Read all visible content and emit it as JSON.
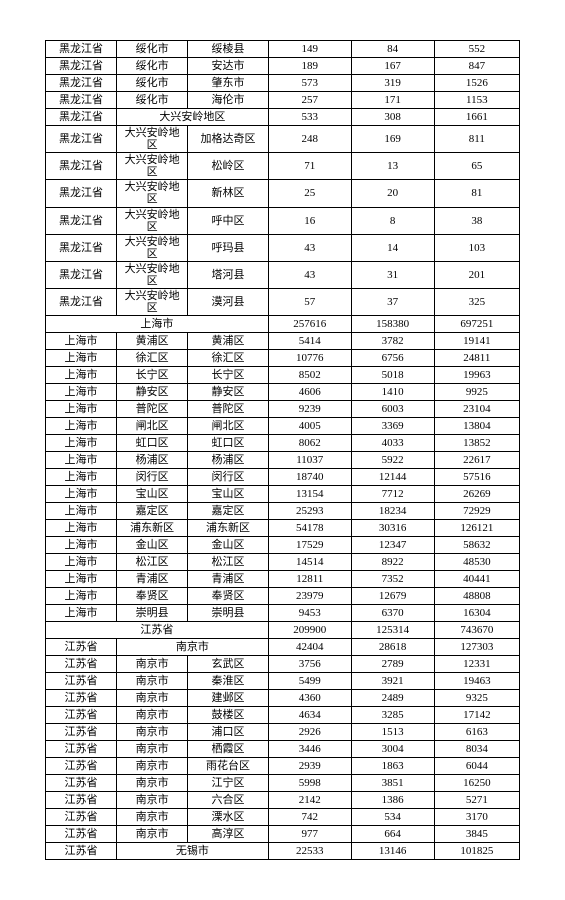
{
  "rows": [
    {
      "type": "normal",
      "c1": "黑龙江省",
      "c2": "绥化市",
      "c3": "绥棱县",
      "c4": "149",
      "c5": "84",
      "c6": "552"
    },
    {
      "type": "normal",
      "c1": "黑龙江省",
      "c2": "绥化市",
      "c3": "安达市",
      "c4": "189",
      "c5": "167",
      "c6": "847"
    },
    {
      "type": "normal",
      "c1": "黑龙江省",
      "c2": "绥化市",
      "c3": "肇东市",
      "c4": "573",
      "c5": "319",
      "c6": "1526"
    },
    {
      "type": "normal",
      "c1": "黑龙江省",
      "c2": "绥化市",
      "c3": "海伦市",
      "c4": "257",
      "c5": "171",
      "c6": "1153"
    },
    {
      "type": "sub2",
      "c1": "黑龙江省",
      "c23": "大兴安岭地区",
      "c4": "533",
      "c5": "308",
      "c6": "1661"
    },
    {
      "type": "normal",
      "c1": "黑龙江省",
      "c2": "大兴安岭地区",
      "c3": "加格达奇区",
      "c4": "248",
      "c5": "169",
      "c6": "811"
    },
    {
      "type": "normal",
      "c1": "黑龙江省",
      "c2": "大兴安岭地区",
      "c3": "松岭区",
      "c4": "71",
      "c5": "13",
      "c6": "65"
    },
    {
      "type": "normal",
      "c1": "黑龙江省",
      "c2": "大兴安岭地区",
      "c3": "新林区",
      "c4": "25",
      "c5": "20",
      "c6": "81"
    },
    {
      "type": "normal",
      "c1": "黑龙江省",
      "c2": "大兴安岭地区",
      "c3": "呼中区",
      "c4": "16",
      "c5": "8",
      "c6": "38"
    },
    {
      "type": "normal",
      "c1": "黑龙江省",
      "c2": "大兴安岭地区",
      "c3": "呼玛县",
      "c4": "43",
      "c5": "14",
      "c6": "103"
    },
    {
      "type": "normal",
      "c1": "黑龙江省",
      "c2": "大兴安岭地区",
      "c3": "塔河县",
      "c4": "43",
      "c5": "31",
      "c6": "201"
    },
    {
      "type": "normal",
      "c1": "黑龙江省",
      "c2": "大兴安岭地区",
      "c3": "漠河县",
      "c4": "57",
      "c5": "37",
      "c6": "325"
    },
    {
      "type": "prov",
      "c13": "上海市",
      "c4": "257616",
      "c5": "158380",
      "c6": "697251"
    },
    {
      "type": "normal",
      "c1": "上海市",
      "c2": "黄浦区",
      "c3": "黄浦区",
      "c4": "5414",
      "c5": "3782",
      "c6": "19141"
    },
    {
      "type": "normal",
      "c1": "上海市",
      "c2": "徐汇区",
      "c3": "徐汇区",
      "c4": "10776",
      "c5": "6756",
      "c6": "24811"
    },
    {
      "type": "normal",
      "c1": "上海市",
      "c2": "长宁区",
      "c3": "长宁区",
      "c4": "8502",
      "c5": "5018",
      "c6": "19963"
    },
    {
      "type": "normal",
      "c1": "上海市",
      "c2": "静安区",
      "c3": "静安区",
      "c4": "4606",
      "c5": "1410",
      "c6": "9925"
    },
    {
      "type": "normal",
      "c1": "上海市",
      "c2": "普陀区",
      "c3": "普陀区",
      "c4": "9239",
      "c5": "6003",
      "c6": "23104"
    },
    {
      "type": "normal",
      "c1": "上海市",
      "c2": "闸北区",
      "c3": "闸北区",
      "c4": "4005",
      "c5": "3369",
      "c6": "13804"
    },
    {
      "type": "normal",
      "c1": "上海市",
      "c2": "虹口区",
      "c3": "虹口区",
      "c4": "8062",
      "c5": "4033",
      "c6": "13852"
    },
    {
      "type": "normal",
      "c1": "上海市",
      "c2": "杨浦区",
      "c3": "杨浦区",
      "c4": "11037",
      "c5": "5922",
      "c6": "22617"
    },
    {
      "type": "normal",
      "c1": "上海市",
      "c2": "闵行区",
      "c3": "闵行区",
      "c4": "18740",
      "c5": "12144",
      "c6": "57516"
    },
    {
      "type": "normal",
      "c1": "上海市",
      "c2": "宝山区",
      "c3": "宝山区",
      "c4": "13154",
      "c5": "7712",
      "c6": "26269"
    },
    {
      "type": "normal",
      "c1": "上海市",
      "c2": "嘉定区",
      "c3": "嘉定区",
      "c4": "25293",
      "c5": "18234",
      "c6": "72929"
    },
    {
      "type": "normal",
      "c1": "上海市",
      "c2": "浦东新区",
      "c3": "浦东新区",
      "c4": "54178",
      "c5": "30316",
      "c6": "126121"
    },
    {
      "type": "normal",
      "c1": "上海市",
      "c2": "金山区",
      "c3": "金山区",
      "c4": "17529",
      "c5": "12347",
      "c6": "58632"
    },
    {
      "type": "normal",
      "c1": "上海市",
      "c2": "松江区",
      "c3": "松江区",
      "c4": "14514",
      "c5": "8922",
      "c6": "48530"
    },
    {
      "type": "normal",
      "c1": "上海市",
      "c2": "青浦区",
      "c3": "青浦区",
      "c4": "12811",
      "c5": "7352",
      "c6": "40441"
    },
    {
      "type": "normal",
      "c1": "上海市",
      "c2": "奉贤区",
      "c3": "奉贤区",
      "c4": "23979",
      "c5": "12679",
      "c6": "48808"
    },
    {
      "type": "normal",
      "c1": "上海市",
      "c2": "崇明县",
      "c3": "崇明县",
      "c4": "9453",
      "c5": "6370",
      "c6": "16304"
    },
    {
      "type": "prov",
      "c13": "江苏省",
      "c4": "209900",
      "c5": "125314",
      "c6": "743670"
    },
    {
      "type": "sub2",
      "c1": "江苏省",
      "c23": "南京市",
      "c4": "42404",
      "c5": "28618",
      "c6": "127303"
    },
    {
      "type": "normal",
      "c1": "江苏省",
      "c2": "南京市",
      "c3": "玄武区",
      "c4": "3756",
      "c5": "2789",
      "c6": "12331"
    },
    {
      "type": "normal",
      "c1": "江苏省",
      "c2": "南京市",
      "c3": "秦淮区",
      "c4": "5499",
      "c5": "3921",
      "c6": "19463"
    },
    {
      "type": "normal",
      "c1": "江苏省",
      "c2": "南京市",
      "c3": "建邺区",
      "c4": "4360",
      "c5": "2489",
      "c6": "9325"
    },
    {
      "type": "normal",
      "c1": "江苏省",
      "c2": "南京市",
      "c3": "鼓楼区",
      "c4": "4634",
      "c5": "3285",
      "c6": "17142"
    },
    {
      "type": "normal",
      "c1": "江苏省",
      "c2": "南京市",
      "c3": "浦口区",
      "c4": "2926",
      "c5": "1513",
      "c6": "6163"
    },
    {
      "type": "normal",
      "c1": "江苏省",
      "c2": "南京市",
      "c3": "栖霞区",
      "c4": "3446",
      "c5": "3004",
      "c6": "8034"
    },
    {
      "type": "normal",
      "c1": "江苏省",
      "c2": "南京市",
      "c3": "雨花台区",
      "c4": "2939",
      "c5": "1863",
      "c6": "6044"
    },
    {
      "type": "normal",
      "c1": "江苏省",
      "c2": "南京市",
      "c3": "江宁区",
      "c4": "5998",
      "c5": "3851",
      "c6": "16250"
    },
    {
      "type": "normal",
      "c1": "江苏省",
      "c2": "南京市",
      "c3": "六合区",
      "c4": "2142",
      "c5": "1386",
      "c6": "5271"
    },
    {
      "type": "normal",
      "c1": "江苏省",
      "c2": "南京市",
      "c3": "溧水区",
      "c4": "742",
      "c5": "534",
      "c6": "3170"
    },
    {
      "type": "normal",
      "c1": "江苏省",
      "c2": "南京市",
      "c3": "高淳区",
      "c4": "977",
      "c5": "664",
      "c6": "3845"
    },
    {
      "type": "sub2",
      "c1": "江苏省",
      "c23": "无锡市",
      "c4": "22533",
      "c5": "13146",
      "c6": "101825"
    }
  ]
}
